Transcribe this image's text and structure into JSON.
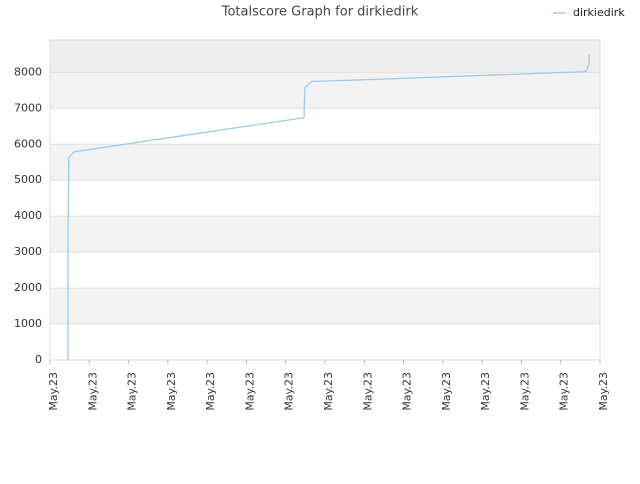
{
  "chart_data": {
    "type": "line",
    "title": "Totalscore Graph for dirkiedirk",
    "x": [
      0.46,
      0.46,
      0.48,
      0.61,
      6.47,
      6.47,
      6.49,
      6.67,
      7.64,
      13.64,
      13.72,
      13.72
    ],
    "series": [
      {
        "name": "dirkiedirk",
        "color": "#9ccaf0",
        "values": [
          0,
          3750,
          5630,
          5790,
          6740,
          6970,
          7580,
          7750,
          7780,
          8020,
          8220,
          8500
        ]
      }
    ],
    "xlim": [
      0,
      14
    ],
    "xticks": [
      {
        "value": 0,
        "label": "May.23"
      },
      {
        "value": 1,
        "label": "May.23"
      },
      {
        "value": 2,
        "label": "May.23"
      },
      {
        "value": 3,
        "label": "May.23"
      },
      {
        "value": 4,
        "label": "May.23"
      },
      {
        "value": 5,
        "label": "May.23"
      },
      {
        "value": 6,
        "label": "May.23"
      },
      {
        "value": 7,
        "label": "May.23"
      },
      {
        "value": 8,
        "label": "May.23"
      },
      {
        "value": 9,
        "label": "May.23"
      },
      {
        "value": 10,
        "label": "May.23"
      },
      {
        "value": 11,
        "label": "May.23"
      },
      {
        "value": 12,
        "label": "May.23"
      },
      {
        "value": 13,
        "label": "May.23"
      },
      {
        "value": 14,
        "label": "May.23"
      }
    ],
    "ylim": [
      0,
      8900
    ],
    "yticks": [
      0,
      1000,
      2000,
      3000,
      4000,
      5000,
      6000,
      7000,
      8000
    ],
    "grid": true,
    "legend": "top-right"
  }
}
